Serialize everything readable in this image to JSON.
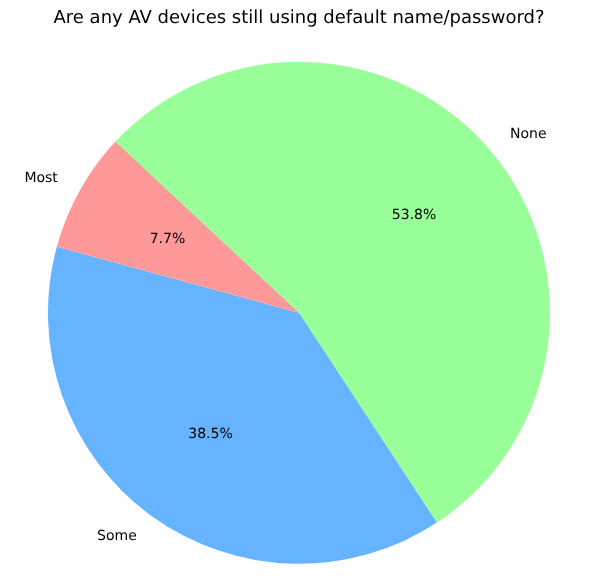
{
  "chart_data": {
    "type": "pie",
    "title": "Are any AV devices still using default name/password?",
    "categories": [
      "None",
      "Some",
      "Most"
    ],
    "values": [
      53.8,
      38.5,
      7.7
    ],
    "colors": [
      "#99ff99",
      "#66b3ff",
      "#ff9999"
    ],
    "value_labels": [
      "53.8%",
      "38.5%",
      "7.7%"
    ]
  }
}
